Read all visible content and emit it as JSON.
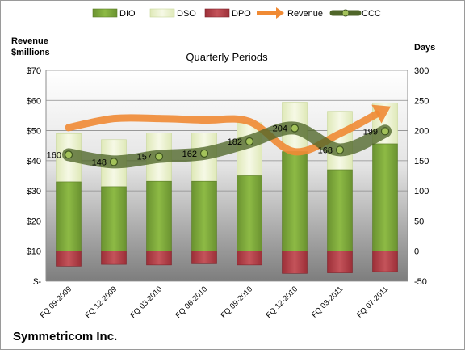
{
  "chart_data": {
    "type": "bar",
    "title": "Quarterly Periods",
    "company": "Symmetricom Inc.",
    "left_axis_label": "Revenue\n$millions",
    "right_axis_label": "Days",
    "categories": [
      "FQ 09-2009",
      "FQ 12-2009",
      "FQ 03-2010",
      "FQ 06-2010",
      "FQ 09-2010",
      "FQ 12-2010",
      "FQ 03-2011",
      "FQ 07-2011"
    ],
    "left_axis": {
      "min": 0,
      "max": 70,
      "ticks": [
        0,
        10,
        20,
        30,
        40,
        50,
        60,
        70
      ],
      "tick_labels": [
        "$-",
        "$10",
        "$20",
        "$30",
        "$40",
        "$50",
        "$60",
        "$70"
      ]
    },
    "right_axis": {
      "min": -50,
      "max": 300,
      "ticks": [
        -50,
        0,
        50,
        100,
        150,
        200,
        250,
        300
      ],
      "tick_labels": [
        "-50",
        "0",
        "50",
        "100",
        "150",
        "200",
        "250",
        "300"
      ]
    },
    "legend": {
      "position": "top",
      "items": [
        "DIO",
        "DSO",
        "DPO",
        "Revenue",
        "CCC"
      ]
    },
    "series": [
      {
        "name": "DIO",
        "axis": "right",
        "values": [
          115,
          107,
          116,
          116,
          125,
          165,
          135,
          178
        ]
      },
      {
        "name": "DSO",
        "axis": "right",
        "values": [
          80,
          78,
          80,
          80,
          88,
          82,
          97,
          68
        ]
      },
      {
        "name": "DPO",
        "axis": "right",
        "values": [
          -25,
          -22,
          -23,
          -21,
          -23,
          -37,
          -36,
          -34
        ]
      },
      {
        "name": "Revenue",
        "axis": "left",
        "values": [
          51,
          54,
          54,
          53.5,
          53,
          43,
          49,
          57
        ]
      },
      {
        "name": "CCC",
        "axis": "right",
        "values": [
          160,
          148,
          157,
          162,
          182,
          204,
          168,
          199
        ],
        "data_labels": [
          "160",
          "148",
          "157",
          "162",
          "182",
          "204",
          "168",
          "199"
        ]
      }
    ],
    "colors": {
      "DIO": "#7ea63a",
      "DSO": "#eef4d2",
      "DPO": "#b8434b",
      "Revenue": "#f08a34",
      "CCC": "#556b2f"
    }
  }
}
